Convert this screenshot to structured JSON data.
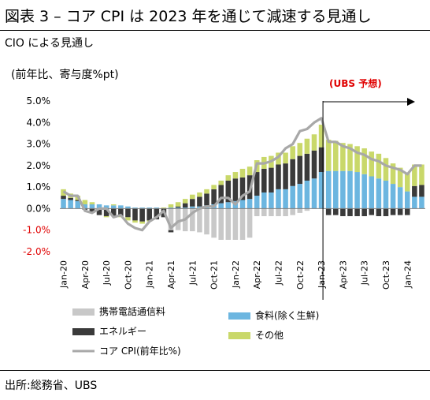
{
  "title": "図表 3 – コア CPI は 2023 年を通じて減速する見通し",
  "subtitle": "CIO による見通し",
  "unit_label": "(前年比、寄与度%pt)",
  "source": "出所:総務省、UBS",
  "chart_data": {
    "type": "bar",
    "stacked": true,
    "ylim": [
      -2.0,
      5.0
    ],
    "yticks": [
      "5.0%",
      "4.0%",
      "3.0%",
      "2.0%",
      "1.0%",
      "0.0%",
      "-1.0%",
      "-2.0%"
    ],
    "ytick_values": [
      5,
      4,
      3,
      2,
      1,
      0,
      -1,
      -2
    ],
    "negative_tick_color": "#e00000",
    "x": [
      "Jan-20",
      "Feb-20",
      "Mar-20",
      "Apr-20",
      "May-20",
      "Jun-20",
      "Jul-20",
      "Aug-20",
      "Sep-20",
      "Oct-20",
      "Nov-20",
      "Dec-20",
      "Jan-21",
      "Feb-21",
      "Mar-21",
      "Apr-21",
      "May-21",
      "Jun-21",
      "Jul-21",
      "Aug-21",
      "Sep-21",
      "Oct-21",
      "Nov-21",
      "Dec-21",
      "Jan-22",
      "Feb-22",
      "Mar-22",
      "Apr-22",
      "May-22",
      "Jun-22",
      "Jul-22",
      "Aug-22",
      "Sep-22",
      "Oct-22",
      "Nov-22",
      "Dec-22",
      "Jan-23",
      "Feb-23",
      "Mar-23",
      "Apr-23",
      "May-23",
      "Jun-23",
      "Jul-23",
      "Aug-23",
      "Sep-23",
      "Oct-23",
      "Nov-23",
      "Dec-23",
      "Jan-24",
      "Feb-24",
      "Mar-24"
    ],
    "xtick_labels": [
      "Jan-20",
      "Apr-20",
      "Jul-20",
      "Oct-20",
      "Jan-21",
      "Apr-21",
      "Jul-21",
      "Oct-21",
      "Jan-22",
      "Apr-22",
      "Jul-22",
      "Oct-22",
      "Jan-23",
      "Apr-23",
      "Jul-23",
      "Oct-23",
      "Jan-24"
    ],
    "forecast_start": "Jan-23",
    "annotation": "(UBS 予想)",
    "series": [
      {
        "name": "携帯電話通信料",
        "color": "#c8c8c8",
        "values": [
          0,
          0,
          0,
          0,
          0,
          0,
          0,
          0,
          0,
          0,
          0,
          0,
          0,
          0,
          0,
          -1.0,
          -1.0,
          -1.05,
          -1.05,
          -1.1,
          -1.2,
          -1.35,
          -1.45,
          -1.45,
          -1.45,
          -1.45,
          -1.35,
          -0.35,
          -0.35,
          -0.35,
          -0.35,
          -0.35,
          -0.3,
          -0.2,
          -0.1,
          0,
          0,
          0,
          0,
          0,
          0,
          0,
          0,
          0,
          0,
          0,
          0,
          0,
          0,
          0,
          0
        ]
      },
      {
        "name": "食料(除く生鮮)",
        "color": "#6cb6e0",
        "values": [
          0.45,
          0.4,
          0.35,
          0.2,
          0.2,
          0.2,
          0.15,
          0.15,
          0.15,
          0.1,
          0.05,
          0.05,
          0.05,
          0.05,
          0,
          0.05,
          0.05,
          0.05,
          0.1,
          0.1,
          0.15,
          0.2,
          0.25,
          0.3,
          0.35,
          0.4,
          0.45,
          0.6,
          0.75,
          0.75,
          0.9,
          0.9,
          1.05,
          1.15,
          1.3,
          1.4,
          1.7,
          1.75,
          1.75,
          1.75,
          1.75,
          1.7,
          1.6,
          1.5,
          1.4,
          1.3,
          1.15,
          1.0,
          0.8,
          0.55,
          0.55
        ]
      },
      {
        "name": "エネルギー",
        "color": "#3a3a3a",
        "values": [
          0.15,
          0.1,
          0.05,
          -0.05,
          -0.2,
          -0.3,
          -0.35,
          -0.35,
          -0.35,
          -0.4,
          -0.55,
          -0.6,
          -0.55,
          -0.5,
          -0.4,
          -0.1,
          0.05,
          0.2,
          0.35,
          0.45,
          0.55,
          0.7,
          0.85,
          1.0,
          1.05,
          1.05,
          1.1,
          1.1,
          1.1,
          1.15,
          1.15,
          1.2,
          1.25,
          1.3,
          1.25,
          1.3,
          1.15,
          -0.3,
          -0.3,
          -0.35,
          -0.35,
          -0.35,
          -0.35,
          -0.3,
          -0.35,
          -0.35,
          -0.3,
          -0.3,
          -0.3,
          0.5,
          0.55
        ]
      },
      {
        "name": "その他",
        "color": "#c9d86a",
        "values": [
          0.3,
          0.2,
          0.2,
          0.2,
          0.1,
          0,
          -0.05,
          0.05,
          -0.05,
          -0.15,
          -0.1,
          -0.1,
          -0.05,
          0,
          0.05,
          0.15,
          0.2,
          0.2,
          0.2,
          0.2,
          0.2,
          0.2,
          0.2,
          0.25,
          0.3,
          0.4,
          0.4,
          0.55,
          0.55,
          0.55,
          0.55,
          0.5,
          0.6,
          0.6,
          0.7,
          0.75,
          1.05,
          1.45,
          1.4,
          1.3,
          1.25,
          1.2,
          1.2,
          1.15,
          1.15,
          1.05,
          0.95,
          0.9,
          0.85,
          1.0,
          0.95
        ]
      },
      {
        "name": "コア CPI(前年比%)",
        "color": "#a8a8a8",
        "kind": "line",
        "values": [
          0.8,
          0.6,
          0.6,
          -0.1,
          -0.2,
          0,
          0,
          -0.4,
          -0.3,
          -0.7,
          -0.9,
          -1.0,
          -0.6,
          -0.4,
          -0.1,
          -0.9,
          -0.6,
          -0.5,
          -0.2,
          0,
          0.1,
          0.1,
          0.5,
          0.5,
          0.2,
          0.6,
          0.8,
          2.1,
          2.1,
          2.2,
          2.4,
          2.8,
          3.0,
          3.6,
          3.7,
          4.0,
          4.2,
          3.1,
          3.1,
          2.9,
          2.8,
          2.6,
          2.5,
          2.3,
          2.2,
          2.0,
          1.9,
          1.8,
          1.6,
          2.0,
          2.0
        ]
      }
    ]
  }
}
